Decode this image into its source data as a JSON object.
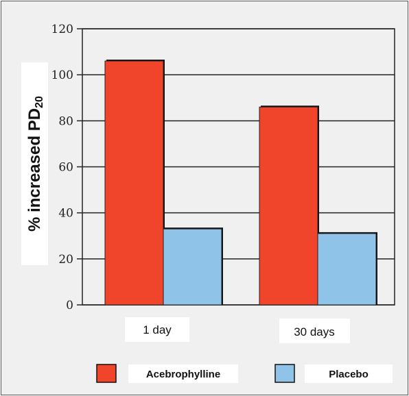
{
  "chart_data": {
    "type": "bar",
    "title": "",
    "xlabel": "",
    "ylabel": "% increased PD",
    "ylabel_subscript": "20",
    "categories": [
      "1 day",
      "30 days"
    ],
    "series": [
      {
        "name": "Acebrophylline",
        "values": [
          106,
          86
        ],
        "color": "#f0452a"
      },
      {
        "name": "Placebo",
        "values": [
          33,
          31
        ],
        "color": "#8fc4e8"
      }
    ],
    "ylim": [
      0,
      120
    ],
    "yticks": [
      0,
      20,
      40,
      60,
      80,
      100,
      120
    ],
    "grid": true,
    "legend_position": "bottom"
  },
  "colors": {
    "background": "#f0f0f0",
    "grid": "#222222",
    "label_box": "#ffffff"
  }
}
